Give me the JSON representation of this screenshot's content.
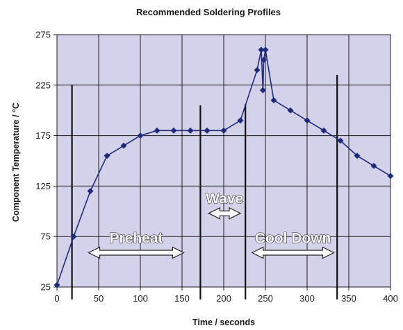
{
  "chart_data": {
    "type": "line",
    "title": "Recommended Soldering Profiles",
    "xlabel": "Time / seconds",
    "ylabel": "Component Temperature / °C",
    "xlim": [
      0,
      400
    ],
    "ylim": [
      25,
      275
    ],
    "xticks": [
      0,
      50,
      100,
      150,
      200,
      250,
      300,
      350,
      400
    ],
    "yticks": [
      25,
      75,
      125,
      175,
      225,
      275
    ],
    "grid": true,
    "colors": {
      "plot_background": "#d4d2ea",
      "series_line": "#1f2a7a",
      "grid": "#1a1a1a"
    },
    "series": [
      {
        "name": "",
        "x": [
          0,
          20,
          40,
          60,
          80,
          100,
          120,
          140,
          160,
          180,
          200,
          220,
          240,
          245,
          247,
          248,
          250,
          260,
          280,
          300,
          320,
          340,
          360,
          380,
          400
        ],
        "y": [
          27,
          75,
          120,
          155,
          165,
          175,
          180,
          180,
          180,
          180,
          180,
          190,
          240,
          260,
          220,
          250,
          260,
          210,
          200,
          190,
          180,
          170,
          155,
          145,
          135
        ]
      }
    ],
    "zone_markers_x": [
      18,
      172,
      226,
      336
    ],
    "annotations": [
      {
        "text": "Preheat",
        "x_from": 38,
        "x_to": 152,
        "y": 59
      },
      {
        "text": "Wave",
        "x_from": 182,
        "x_to": 220,
        "y": 98
      },
      {
        "text": "Cool Down",
        "x_from": 234,
        "x_to": 332,
        "y": 59
      }
    ]
  }
}
